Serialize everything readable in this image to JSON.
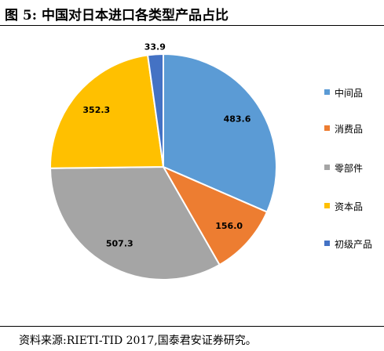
{
  "header": {
    "title": "图 5:  中国对日本进口各类型产品占比"
  },
  "footer": {
    "source": "资料来源:RIETI-TID 2017,国泰君安证券研究。"
  },
  "chart_data": {
    "type": "pie",
    "title": "",
    "categories": [
      "中间品",
      "消费品",
      "零部件",
      "资本品",
      "初级产品"
    ],
    "values": [
      483.6,
      156.0,
      507.3,
      352.3,
      33.9
    ],
    "value_labels": [
      "483.6",
      "156.0",
      "507.3",
      "352.3",
      "33.9"
    ],
    "colors": [
      "#5B9BD5",
      "#ED7D31",
      "#A5A5A5",
      "#FFC000",
      "#4472C4"
    ],
    "start_angle_deg": 0,
    "direction": "clockwise",
    "legend_position": "right"
  }
}
